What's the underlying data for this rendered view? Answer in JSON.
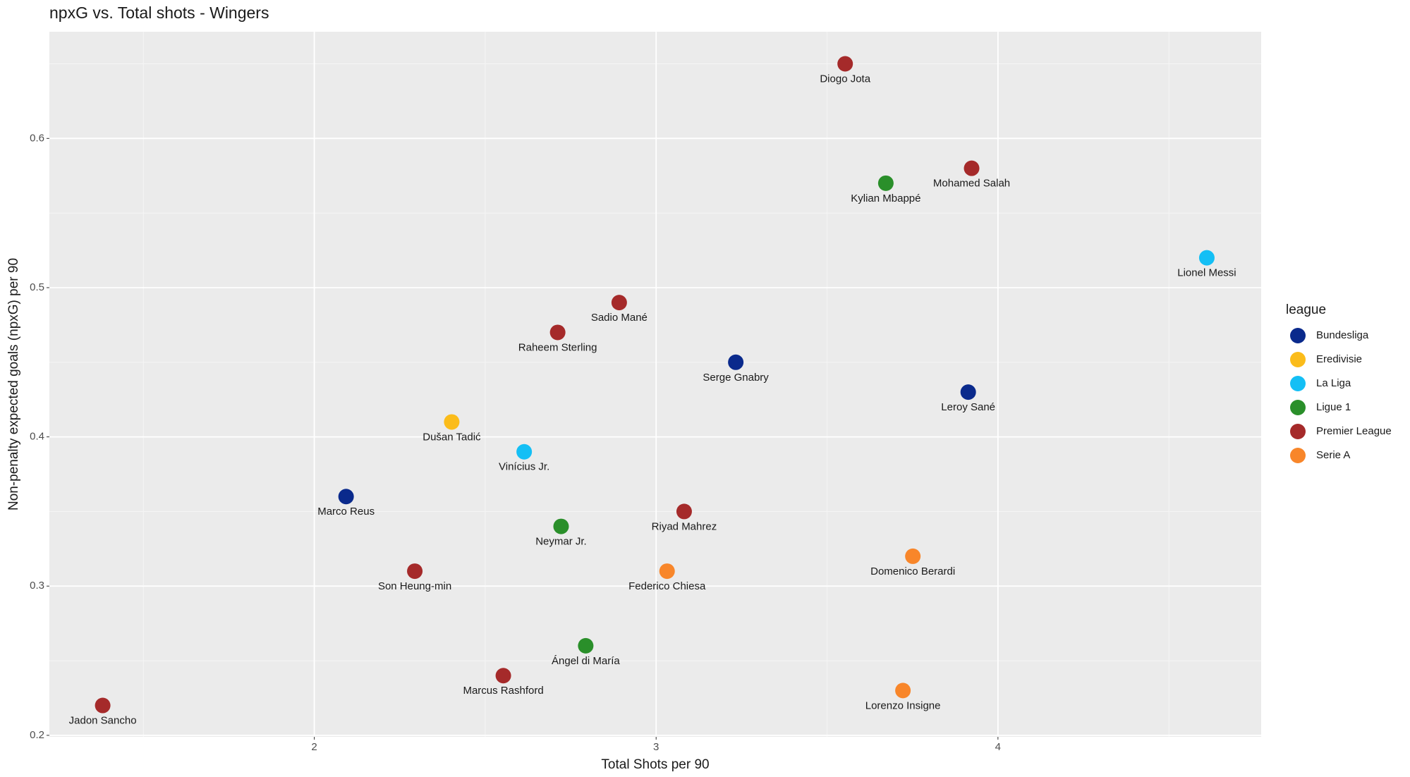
{
  "chart_data": {
    "type": "scatter",
    "title": "npxG vs. Total shots - Wingers",
    "x_label": "Total Shots per 90",
    "y_label": "Non-penalty expected goals (npxG) per 90",
    "legend_title": "league",
    "legend_position": "right",
    "grid": true,
    "xlim": [
      1.225,
      4.77
    ],
    "ylim": [
      0.199,
      0.6715
    ],
    "xticks": [
      2,
      3,
      4
    ],
    "yticks": [
      {
        "value": 0.2,
        "label": "0.2"
      },
      {
        "value": 0.3,
        "label": "0.3"
      },
      {
        "value": 0.4,
        "label": "0.4"
      },
      {
        "value": 0.5,
        "label": "0.5"
      },
      {
        "value": 0.6,
        "label": "0.6"
      }
    ],
    "series": [
      {
        "name": "Bundesliga",
        "color": "#0a2a8c",
        "x": [
          3.233,
          3.913,
          2.093
        ],
        "y": [
          0.45,
          0.43,
          0.36
        ],
        "labels": [
          "Serge Gnabry",
          "Leroy Sané",
          "Marco Reus"
        ]
      },
      {
        "name": "Eredivisie",
        "color": "#fbbc1a",
        "x": [
          2.402
        ],
        "y": [
          0.41
        ],
        "labels": [
          "Dušan Tadić"
        ]
      },
      {
        "name": "La Liga",
        "color": "#14bff5",
        "x": [
          4.611,
          2.614
        ],
        "y": [
          0.52,
          0.39
        ],
        "labels": [
          "Lionel Messi",
          "Vinícius Jr."
        ]
      },
      {
        "name": "Ligue 1",
        "color": "#2a8f2a",
        "x": [
          3.672,
          2.722,
          2.794
        ],
        "y": [
          0.57,
          0.34,
          0.26
        ],
        "labels": [
          "Kylian Mbappé",
          "Neymar Jr.",
          "Ángel di María"
        ]
      },
      {
        "name": "Premier League",
        "color": "#a52a2a",
        "x": [
          3.553,
          3.923,
          2.892,
          2.712,
          3.082,
          2.294,
          2.553,
          1.381
        ],
        "y": [
          0.65,
          0.58,
          0.49,
          0.47,
          0.35,
          0.31,
          0.24,
          0.22
        ],
        "labels": [
          "Diogo Jota",
          "Mohamed Salah",
          "Sadio Mané",
          "Raheem Sterling",
          "Riyad Mahrez",
          "Son Heung-min",
          "Marcus Rashford",
          "Jadon Sancho"
        ]
      },
      {
        "name": "Serie A",
        "color": "#f8862a",
        "x": [
          3.751,
          3.032,
          3.722
        ],
        "y": [
          0.32,
          0.31,
          0.23
        ],
        "labels": [
          "Domenico Berardi",
          "Federico Chiesa",
          "Lorenzo Insigne"
        ]
      }
    ]
  }
}
